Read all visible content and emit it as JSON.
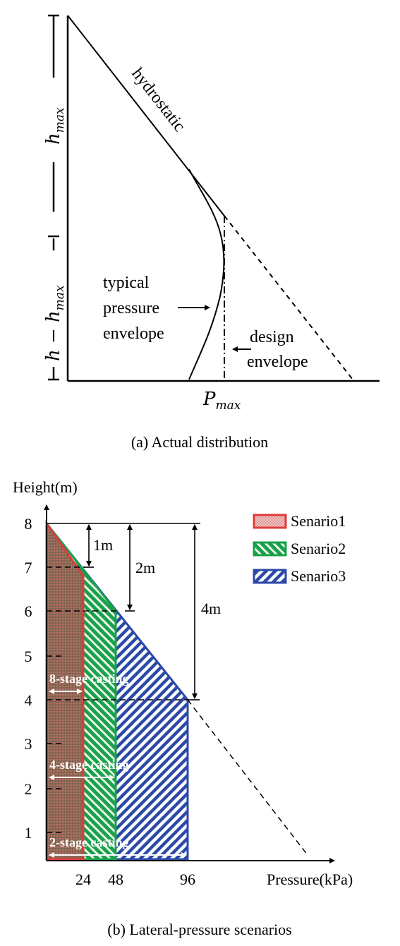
{
  "panel_a": {
    "caption": "(a) Actual distribution",
    "dim_top_label": "h",
    "dim_top_sub": "max",
    "dim_bottom_label": "h − h",
    "dim_bottom_sub": "max",
    "hydrostatic_label": "hydrostatic",
    "typical_label": [
      "typical",
      "pressure",
      "envelope"
    ],
    "design_label": [
      "design",
      "envelope"
    ],
    "pmax_label": "P",
    "pmax_sub": "max"
  },
  "panel_b": {
    "caption": "(b) Lateral-pressure scenarios",
    "y_axis_title": "Height(m)",
    "x_axis_title": "Pressure(kPa)",
    "y_ticks": [
      "1",
      "2",
      "3",
      "4",
      "5",
      "6",
      "7",
      "8"
    ],
    "x_ticks": [
      "24",
      "48",
      "96"
    ],
    "legend": [
      {
        "label": "Senario1",
        "color": "#e03a3a"
      },
      {
        "label": "Senario2",
        "color": "#1aa04a"
      },
      {
        "label": "Senario3",
        "color": "#2c49a8"
      }
    ],
    "dims": [
      "1m",
      "2m",
      "4m"
    ],
    "casting": [
      "8-stage casting",
      "4-stage casting",
      "2-stage casting"
    ]
  },
  "chart_data": {
    "type": "area",
    "xlabel": "Pressure(kPa)",
    "ylabel": "Height(m)",
    "ylim": [
      0,
      8
    ],
    "x_ticks": [
      24,
      48,
      96
    ],
    "series": [
      {
        "name": "Senario1",
        "points": [
          [
            0,
            8
          ],
          [
            24,
            7
          ],
          [
            24,
            0
          ],
          [
            0,
            0
          ]
        ]
      },
      {
        "name": "Senario2",
        "points": [
          [
            0,
            8
          ],
          [
            48,
            6
          ],
          [
            48,
            0
          ],
          [
            0,
            0
          ]
        ]
      },
      {
        "name": "Senario3",
        "points": [
          [
            0,
            8
          ],
          [
            96,
            4
          ],
          [
            96,
            0
          ],
          [
            0,
            0
          ]
        ]
      }
    ]
  }
}
